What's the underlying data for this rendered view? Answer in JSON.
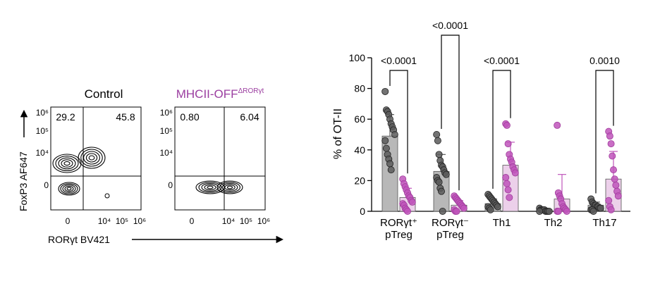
{
  "flow_plots": {
    "y_axis_label": "FoxP3 AF647",
    "x_axis_label": "RORγt BV421",
    "y_tick_labels": [
      "10⁶",
      "10⁵",
      "10⁴",
      "0"
    ],
    "x_tick_labels": [
      "0",
      "10⁴",
      "10⁵",
      "10⁶"
    ],
    "panels": [
      {
        "title": "Control",
        "upper_left": "29.2",
        "upper_right": "45.8"
      },
      {
        "title": "MHCII-OFF",
        "title_superscript": "ΔRORγt",
        "upper_left": "0.80",
        "upper_right": "6.04"
      }
    ]
  },
  "chart_data": {
    "type": "bar",
    "y_label": "% of OT-II",
    "categories": [
      "RORγt⁺ pTreg",
      "RORγt⁻ pTreg",
      "Th1",
      "Th2",
      "Th17"
    ],
    "ylim": [
      0,
      100
    ],
    "yticks": [
      0,
      20,
      40,
      60,
      80,
      100
    ],
    "series": [
      {
        "color": "#b8b8b8",
        "point_color": "#5a5a5a",
        "values": [
          49,
          26,
          5,
          1,
          4
        ],
        "errors": [
          14,
          11,
          3,
          1,
          2
        ],
        "points": [
          [
            78,
            66,
            65,
            63,
            60,
            57,
            55,
            53,
            50,
            46,
            41,
            37,
            34,
            31,
            27
          ],
          [
            50,
            46,
            37,
            33,
            30,
            29,
            27,
            25,
            24,
            22,
            20,
            19,
            15,
            13,
            0
          ],
          [
            11,
            10,
            9,
            8,
            7,
            6,
            5,
            4,
            3,
            3,
            2,
            1
          ],
          [
            2,
            1,
            1,
            1,
            1,
            0,
            0,
            0,
            0,
            0
          ],
          [
            8,
            6,
            5,
            4,
            4,
            3,
            3,
            2,
            2,
            1,
            1,
            0
          ]
        ]
      },
      {
        "color": "#ecd0ea",
        "point_color": "#bf55bb",
        "values": [
          9,
          4,
          30,
          8,
          21
        ],
        "errors": [
          6,
          3,
          15,
          16,
          18
        ],
        "points": [
          [
            21,
            18,
            16,
            14,
            12,
            10,
            9,
            7,
            6,
            5,
            4,
            2,
            1,
            0
          ],
          [
            10,
            9,
            8,
            7,
            6,
            5,
            4,
            3,
            2,
            1,
            0,
            0
          ],
          [
            57,
            56,
            44,
            37,
            34,
            32,
            29,
            27,
            25,
            22,
            18,
            14,
            9
          ],
          [
            56,
            12,
            10,
            8,
            5,
            3,
            2,
            1,
            0,
            0,
            0
          ],
          [
            52,
            49,
            44,
            36,
            27,
            21,
            17,
            13,
            10,
            7,
            3,
            1
          ]
        ]
      }
    ],
    "annotations": [
      {
        "category": "RORγt⁺ pTreg",
        "text": "<0.0001"
      },
      {
        "category": "RORγt⁻ pTreg",
        "text": "<0.0001"
      },
      {
        "category": "Th1",
        "text": "<0.0001"
      },
      {
        "category": "Th17",
        "text": "0.0010"
      }
    ]
  }
}
